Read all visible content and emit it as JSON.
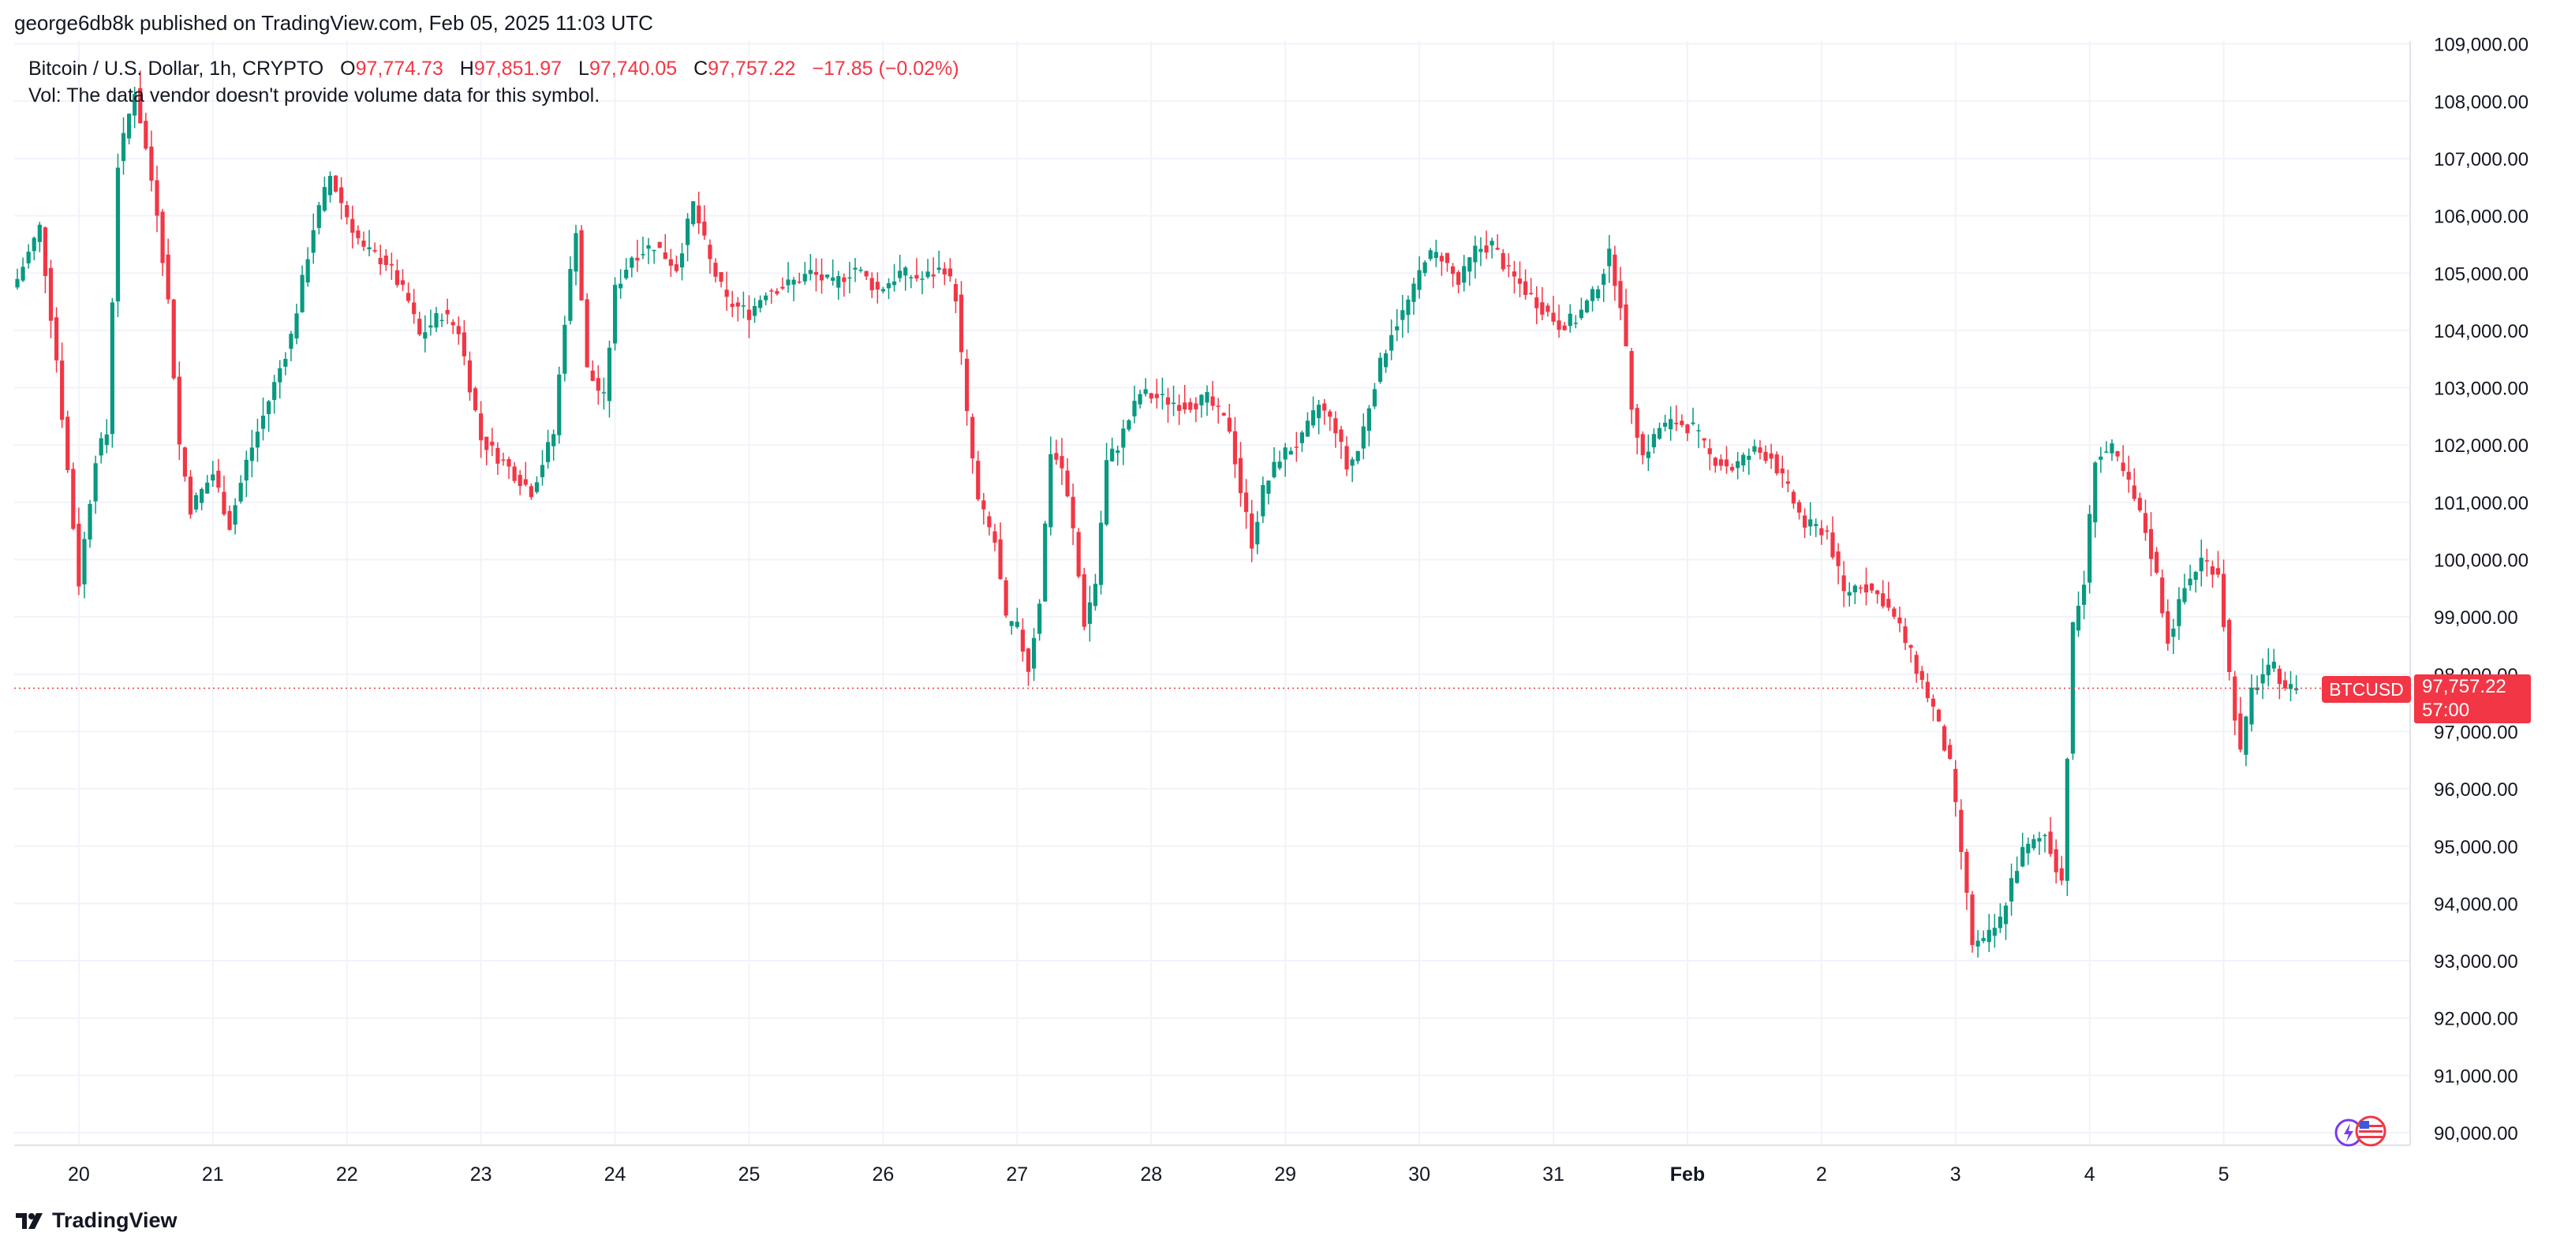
{
  "header": {
    "publish_line": "george6db8k published on TradingView.com, Feb 05, 2025 11:03 UTC"
  },
  "legend": {
    "symbol": "Bitcoin / U.S. Dollar, 1h, CRYPTO",
    "open_label": "O",
    "open": "97,774.73",
    "high_label": "H",
    "high": "97,851.97",
    "low_label": "L",
    "low": "97,740.05",
    "close_label": "C",
    "close": "97,757.22",
    "change": "−17.85 (−0.02%)",
    "volume_note": "Vol: The data vendor doesn't provide volume data for this symbol."
  },
  "price_tag": {
    "symbol": "BTCUSD",
    "price": "97,757.22",
    "countdown": "57:00"
  },
  "brand": {
    "name": "TradingView"
  },
  "colors": {
    "up": "#089981",
    "down": "#f23645",
    "grid": "#f0f3fa",
    "text": "#131722"
  },
  "icons": [
    "tradingview-logo-icon",
    "us-flag-icon",
    "lightning-icon"
  ],
  "chart_data": {
    "type": "candlestick",
    "title": "Bitcoin / U.S. Dollar, 1h, CRYPTO",
    "ylim": [
      89700,
      109300
    ],
    "y_ticks": [
      "90,000.00",
      "91,000.00",
      "92,000.00",
      "93,000.00",
      "94,000.00",
      "95,000.00",
      "96,000.00",
      "97,000.00",
      "98,000.00",
      "99,000.00",
      "100,000.00",
      "101,000.00",
      "102,000.00",
      "103,000.00",
      "104,000.00",
      "105,000.00",
      "106,000.00",
      "107,000.00",
      "108,000.00",
      "109,000.00"
    ],
    "x_ticks": [
      {
        "label": "20",
        "hour": 11
      },
      {
        "label": "21",
        "hour": 35
      },
      {
        "label": "22",
        "hour": 59
      },
      {
        "label": "23",
        "hour": 83
      },
      {
        "label": "24",
        "hour": 107
      },
      {
        "label": "25",
        "hour": 131
      },
      {
        "label": "26",
        "hour": 155
      },
      {
        "label": "27",
        "hour": 179
      },
      {
        "label": "28",
        "hour": 203
      },
      {
        "label": "29",
        "hour": 227
      },
      {
        "label": "30",
        "hour": 251
      },
      {
        "label": "31",
        "hour": 275
      },
      {
        "label": "Feb",
        "hour": 299
      },
      {
        "label": "2",
        "hour": 323
      },
      {
        "label": "3",
        "hour": 347
      },
      {
        "label": "4",
        "hour": 371
      },
      {
        "label": "5",
        "hour": 395
      }
    ],
    "last_price": 97757.22,
    "close_anchors": [
      [
        0,
        104900
      ],
      [
        4,
        105800
      ],
      [
        7,
        103500
      ],
      [
        11,
        99600
      ],
      [
        14,
        101800
      ],
      [
        16,
        102200
      ],
      [
        18,
        106900
      ],
      [
        21,
        108200
      ],
      [
        25,
        106100
      ],
      [
        27,
        104500
      ],
      [
        29,
        102000
      ],
      [
        31,
        100900
      ],
      [
        35,
        101500
      ],
      [
        38,
        100600
      ],
      [
        41,
        101700
      ],
      [
        44,
        102500
      ],
      [
        49,
        103900
      ],
      [
        53,
        105800
      ],
      [
        56,
        106700
      ],
      [
        59,
        106000
      ],
      [
        62,
        105400
      ],
      [
        66,
        105200
      ],
      [
        70,
        104500
      ],
      [
        72,
        103900
      ],
      [
        76,
        104300
      ],
      [
        79,
        104000
      ],
      [
        83,
        102100
      ],
      [
        88,
        101600
      ],
      [
        92,
        101200
      ],
      [
        96,
        102200
      ],
      [
        98,
        104200
      ],
      [
        100,
        105800
      ],
      [
        102,
        103300
      ],
      [
        105,
        102800
      ],
      [
        107,
        104700
      ],
      [
        110,
        105300
      ],
      [
        114,
        105500
      ],
      [
        118,
        105100
      ],
      [
        121,
        106200
      ],
      [
        124,
        105200
      ],
      [
        127,
        104500
      ],
      [
        131,
        104300
      ],
      [
        134,
        104700
      ],
      [
        138,
        104800
      ],
      [
        142,
        105000
      ],
      [
        146,
        104800
      ],
      [
        150,
        105100
      ],
      [
        154,
        104700
      ],
      [
        158,
        105000
      ],
      [
        162,
        104900
      ],
      [
        166,
        105100
      ],
      [
        168,
        104600
      ],
      [
        170,
        102500
      ],
      [
        172,
        101000
      ],
      [
        175,
        100300
      ],
      [
        177,
        98900
      ],
      [
        179,
        98800
      ],
      [
        181,
        98100
      ],
      [
        183,
        99300
      ],
      [
        185,
        101900
      ],
      [
        187,
        101600
      ],
      [
        189,
        100500
      ],
      [
        191,
        98900
      ],
      [
        193,
        99600
      ],
      [
        195,
        101700
      ],
      [
        197,
        102000
      ],
      [
        201,
        102900
      ],
      [
        205,
        102800
      ],
      [
        209,
        102700
      ],
      [
        213,
        102800
      ],
      [
        217,
        102300
      ],
      [
        219,
        101200
      ],
      [
        221,
        100300
      ],
      [
        223,
        101200
      ],
      [
        226,
        101800
      ],
      [
        230,
        102100
      ],
      [
        233,
        102700
      ],
      [
        236,
        102300
      ],
      [
        238,
        101600
      ],
      [
        240,
        101900
      ],
      [
        243,
        103100
      ],
      [
        246,
        104000
      ],
      [
        248,
        104300
      ],
      [
        250,
        104700
      ],
      [
        252,
        105300
      ],
      [
        255,
        105300
      ],
      [
        258,
        104800
      ],
      [
        261,
        105400
      ],
      [
        264,
        105500
      ],
      [
        267,
        105000
      ],
      [
        270,
        104700
      ],
      [
        273,
        104400
      ],
      [
        276,
        104100
      ],
      [
        279,
        104200
      ],
      [
        282,
        104600
      ],
      [
        285,
        105300
      ],
      [
        287,
        104500
      ],
      [
        289,
        102700
      ],
      [
        291,
        101800
      ],
      [
        294,
        102300
      ],
      [
        297,
        102400
      ],
      [
        300,
        102300
      ],
      [
        303,
        101800
      ],
      [
        307,
        101600
      ],
      [
        311,
        101900
      ],
      [
        314,
        101800
      ],
      [
        317,
        101200
      ],
      [
        320,
        100600
      ],
      [
        324,
        100500
      ],
      [
        327,
        99400
      ],
      [
        330,
        99600
      ],
      [
        334,
        99300
      ],
      [
        337,
        98800
      ],
      [
        340,
        98100
      ],
      [
        343,
        97400
      ],
      [
        346,
        96400
      ],
      [
        348,
        94900
      ],
      [
        350,
        93300
      ],
      [
        352,
        93300
      ],
      [
        355,
        93700
      ],
      [
        357,
        94400
      ],
      [
        359,
        94900
      ],
      [
        363,
        95200
      ],
      [
        366,
        94400
      ],
      [
        368,
        98800
      ],
      [
        370,
        99600
      ],
      [
        372,
        101800
      ],
      [
        375,
        101900
      ],
      [
        378,
        101300
      ],
      [
        381,
        100500
      ],
      [
        383,
        99700
      ],
      [
        385,
        98600
      ],
      [
        388,
        99500
      ],
      [
        391,
        100000
      ],
      [
        394,
        99800
      ],
      [
        396,
        98000
      ],
      [
        398,
        96600
      ],
      [
        400,
        97700
      ],
      [
        402,
        98000
      ],
      [
        404,
        98100
      ],
      [
        406,
        97800
      ],
      [
        408,
        97700
      ]
    ]
  }
}
